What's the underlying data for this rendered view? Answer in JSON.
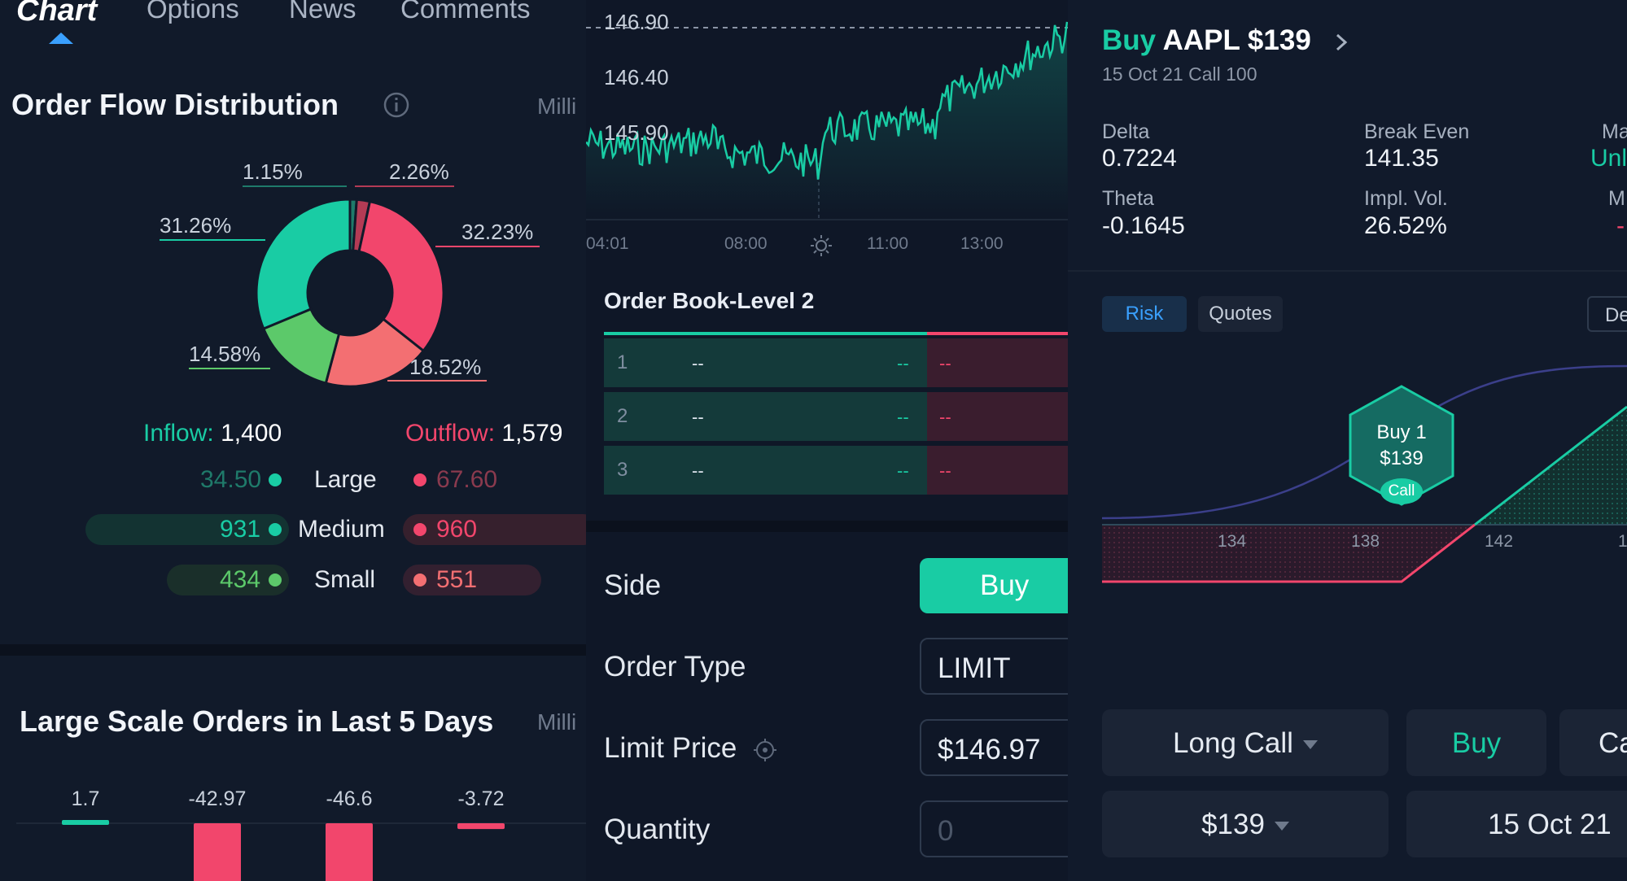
{
  "nav": {
    "tabs": [
      {
        "label": "Chart"
      },
      {
        "label": "Options"
      },
      {
        "label": "News"
      },
      {
        "label": "Comments"
      }
    ]
  },
  "order_flow": {
    "title": "Order Flow Distribution",
    "unit": "Milli",
    "segments": [
      {
        "label": "1.15%",
        "value": 1.15,
        "color": "#1f7a6a"
      },
      {
        "label": "2.26%",
        "value": 2.26,
        "color": "#b43b55"
      },
      {
        "label": "32.23%",
        "value": 32.23,
        "color": "#f2466c"
      },
      {
        "label": "18.52%",
        "value": 18.52,
        "color": "#f36f72"
      },
      {
        "label": "14.58%",
        "value": 14.58,
        "color": "#5cc96a"
      },
      {
        "label": "31.26%",
        "value": 31.26,
        "color": "#19cca4"
      }
    ],
    "inflow_label": "Inflow:",
    "inflow_value": "1,400",
    "outflow_label": "Outflow:",
    "outflow_value": "1,579",
    "rows": [
      {
        "in": "34.50",
        "name": "Large",
        "out": "67.60"
      },
      {
        "in": "931",
        "name": "Medium",
        "out": "960"
      },
      {
        "in": "434",
        "name": "Small",
        "out": "551"
      }
    ]
  },
  "large_orders": {
    "title": "Large Scale Orders in Last 5 Days",
    "unit": "Milli",
    "values": [
      1.7,
      -42.97,
      -46.6,
      -3.72
    ],
    "labels": [
      "1.7",
      "-42.97",
      "-46.6",
      "-3.72"
    ]
  },
  "price_chart": {
    "y_labels": [
      "146.90",
      "146.40",
      "145.90"
    ],
    "x_labels": [
      "04:01",
      "08:00",
      "11:00",
      "13:00"
    ]
  },
  "order_book": {
    "title": "Order Book-Level 2",
    "rows": [
      {
        "idx": "1",
        "price": "--",
        "size": "--",
        "ask": "--"
      },
      {
        "idx": "2",
        "price": "--",
        "size": "--",
        "ask": "--"
      },
      {
        "idx": "3",
        "price": "--",
        "size": "--",
        "ask": "--"
      }
    ]
  },
  "order_form": {
    "side_label": "Side",
    "side_value": "Buy",
    "type_label": "Order Type",
    "type_value": "LIMIT",
    "limit_label": "Limit Price",
    "limit_value": "$146.97",
    "qty_label": "Quantity",
    "qty_placeholder": "0"
  },
  "option": {
    "action": "Buy",
    "symbol": "AAPL $139",
    "subtitle": "15 Oct 21  Call 100",
    "delta_label": "Delta",
    "delta_value": "0.7224",
    "breakeven_label": "Break Even",
    "breakeven_value": "141.35",
    "max_label": "Ma",
    "max_value": "Unl",
    "theta_label": "Theta",
    "theta_value": "-0.1645",
    "iv_label": "Impl. Vol.",
    "iv_value": "26.52%",
    "min_label": "M",
    "min_value": "-",
    "tabs": {
      "risk": "Risk",
      "quotes": "Quotes",
      "third": "De"
    },
    "marker": {
      "line1": "Buy 1",
      "line2": "$139",
      "badge": "Call"
    },
    "x_labels": [
      "134",
      "138",
      "142",
      "1"
    ],
    "strategy": "Long Call",
    "buy": "Buy",
    "third_btn": "Ca",
    "strike": "$139",
    "expiry": "15 Oct 21"
  },
  "colors": {
    "green": "#19cca4",
    "red": "#f2466c",
    "accent": "#3aa0ff"
  }
}
